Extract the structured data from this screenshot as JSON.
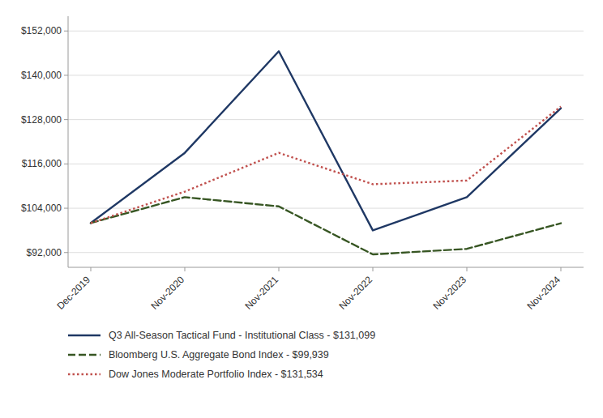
{
  "chart_data": {
    "type": "line",
    "categories": [
      "Dec-2019",
      "Nov-2020",
      "Nov-2021",
      "Nov-2022",
      "Nov-2023",
      "Nov-2024"
    ],
    "series": [
      {
        "name": "Q3 All-Season Tactical Fund - Institutional Class - $131,099",
        "color": "#1F3864",
        "line_style": "solid",
        "values": [
          100000,
          119000,
          146500,
          98000,
          107000,
          131099
        ]
      },
      {
        "name": "Bloomberg U.S. Aggregate Bond Index - $99,939",
        "color": "#375623",
        "line_style": "dashed",
        "values": [
          100000,
          107000,
          104500,
          91500,
          93000,
          99939
        ]
      },
      {
        "name": "Dow Jones Moderate Portfolio Index - $131,534",
        "color": "#C0504D",
        "line_style": "dotted",
        "values": [
          100000,
          108500,
          119000,
          110500,
          111500,
          131534
        ]
      }
    ],
    "ylim": [
      88000,
      156000
    ],
    "yticks": [
      {
        "value": 92000,
        "label": "$92,000"
      },
      {
        "value": 104000,
        "label": "$104,000"
      },
      {
        "value": 116000,
        "label": "$116,000"
      },
      {
        "value": 128000,
        "label": "$128,000"
      },
      {
        "value": 140000,
        "label": "$140,000"
      },
      {
        "value": 152000,
        "label": "$152,000"
      }
    ],
    "grid": true,
    "legend": "bottom"
  }
}
